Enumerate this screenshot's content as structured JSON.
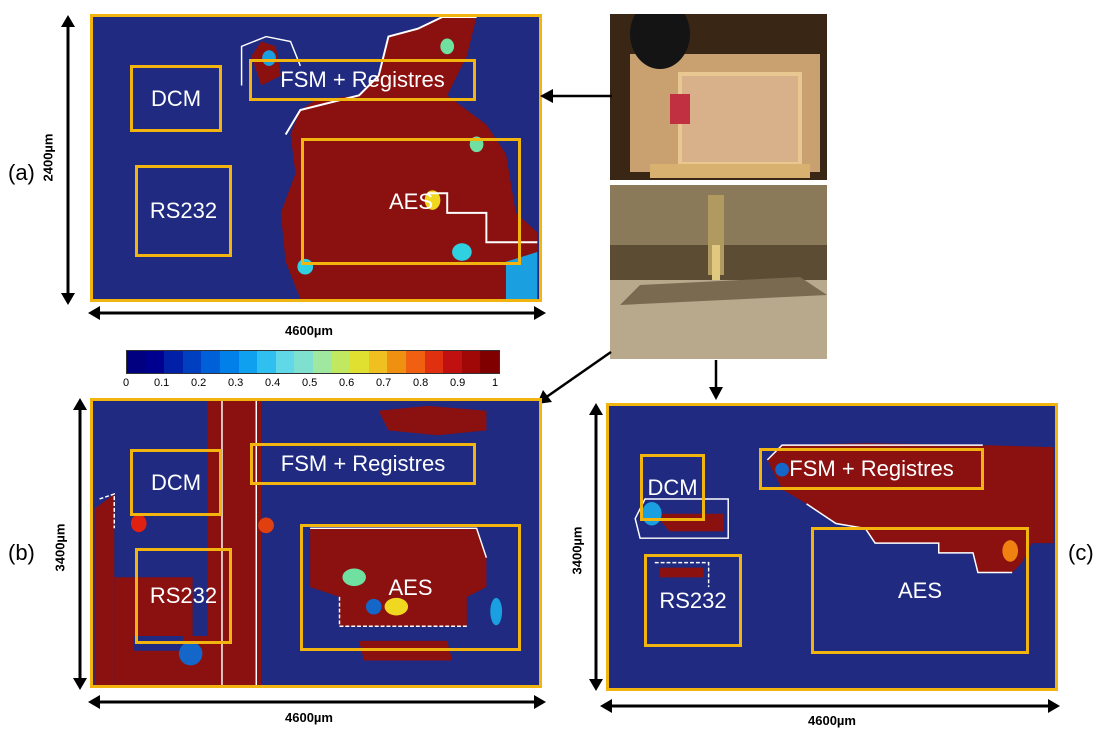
{
  "panels": {
    "a": {
      "label": "(a)",
      "height": "2400µm",
      "width": "4600µm",
      "regions": {
        "dcm": "DCM",
        "fsm": "FSM + Registres",
        "rs232": "RS232",
        "aes": "AES"
      }
    },
    "b": {
      "label": "(b)",
      "height": "3400µm",
      "width": "4600µm",
      "regions": {
        "dcm": "DCM",
        "fsm": "FSM + Registres",
        "rs232": "RS232",
        "aes": "AES"
      }
    },
    "c": {
      "label": "(c)",
      "height": "3400µm",
      "width": "4600µm",
      "regions": {
        "dcm": "DCM",
        "fsm": "FSM + Registres",
        "rs232": "RS232",
        "aes": "AES"
      }
    }
  },
  "colorbar": {
    "ticks": [
      "0",
      "0.1",
      "0.2",
      "0.3",
      "0.4",
      "0.5",
      "0.6",
      "0.7",
      "0.8",
      "0.9",
      "1"
    ],
    "colors": [
      "#000080",
      "#0033a0",
      "#1466c8",
      "#1ea0d8",
      "#2fd0e0",
      "#6fe0a0",
      "#c8e83c",
      "#f0d820",
      "#f08010",
      "#e02010",
      "#800000"
    ]
  },
  "colors": {
    "map_background": "#1f2a80",
    "hot": "#8b1010",
    "outline": "#f2b50f"
  },
  "icons": {
    "photo_top": "probe-photo-top",
    "photo_side": "probe-photo-side"
  }
}
